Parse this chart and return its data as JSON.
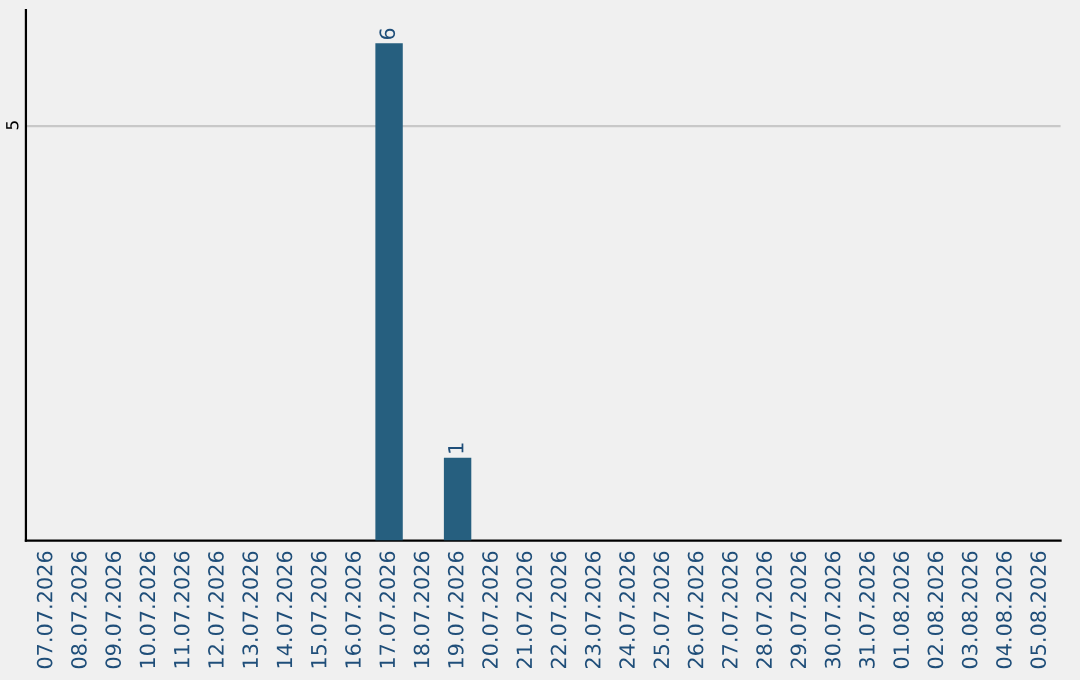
{
  "chart_data": {
    "type": "bar",
    "categories": [
      "07.07.2026",
      "08.07.2026",
      "09.07.2026",
      "10.07.2026",
      "11.07.2026",
      "12.07.2026",
      "13.07.2026",
      "14.07.2026",
      "15.07.2026",
      "16.07.2026",
      "17.07.2026",
      "18.07.2026",
      "19.07.2026",
      "20.07.2026",
      "21.07.2026",
      "22.07.2026",
      "23.07.2026",
      "24.07.2026",
      "25.07.2026",
      "26.07.2026",
      "27.07.2026",
      "28.07.2026",
      "29.07.2026",
      "30.07.2026",
      "31.07.2026",
      "01.08.2026",
      "02.08.2026",
      "03.08.2026",
      "04.08.2026",
      "05.08.2026"
    ],
    "values": [
      0,
      0,
      0,
      0,
      0,
      0,
      0,
      0,
      0,
      0,
      6,
      0,
      1,
      0,
      0,
      0,
      0,
      0,
      0,
      0,
      0,
      0,
      0,
      0,
      0,
      0,
      0,
      0,
      0,
      0
    ],
    "value_labels": [
      null,
      null,
      null,
      null,
      null,
      null,
      null,
      null,
      null,
      null,
      "6",
      null,
      "1",
      null,
      null,
      null,
      null,
      null,
      null,
      null,
      null,
      null,
      null,
      null,
      null,
      null,
      null,
      null,
      null,
      null
    ],
    "color": "#265f7f",
    "ylim": [
      0,
      6.4
    ],
    "yticks": [
      5
    ],
    "grid": "y",
    "legend": false
  }
}
